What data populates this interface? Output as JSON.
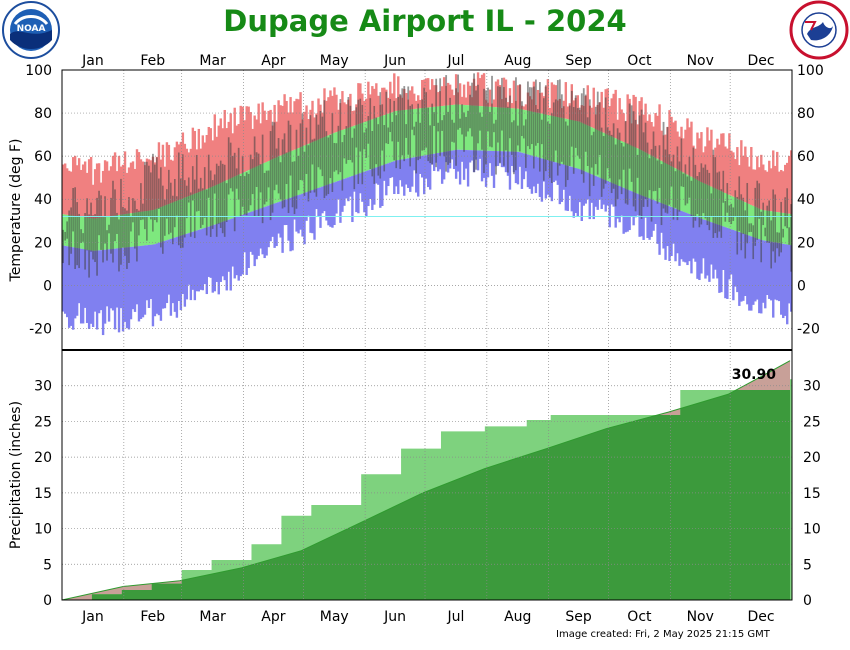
{
  "header": {
    "title": "Dupage Airport IL - 2024",
    "credit": "Image created: Fri, 2 May 2025 21:15 GMT"
  },
  "logos": {
    "left": "noaa-logo",
    "right": "nws-logo"
  },
  "colors": {
    "title": "#168a16",
    "record_band": "#f08080",
    "normal_band": "#7ee87e",
    "low_band": "#8080f0",
    "obs_bar": "#404040",
    "precip_actual": "#3c9a3c",
    "precip_normal_deficit": "#c8a098",
    "precip_normal_line": "#3cb43c"
  },
  "chart_data": [
    {
      "type": "bar",
      "name": "temperature",
      "ylabel": "Temperature (deg F)",
      "ylim": [
        -30,
        100
      ],
      "yticks": [
        -20,
        0,
        20,
        40,
        60,
        80,
        100
      ],
      "months": [
        "Jan",
        "Feb",
        "Mar",
        "Apr",
        "May",
        "Jun",
        "Jul",
        "Aug",
        "Sep",
        "Oct",
        "Nov",
        "Dec"
      ],
      "grid": true,
      "freezing_line": 32,
      "normal_high": [
        31,
        35,
        46,
        59,
        71,
        81,
        84,
        82,
        76,
        63,
        48,
        35
      ],
      "normal_low": [
        16,
        19,
        28,
        38,
        48,
        58,
        63,
        62,
        54,
        42,
        31,
        21
      ],
      "record_high": [
        60,
        66,
        80,
        88,
        93,
        99,
        100,
        97,
        95,
        88,
        76,
        66
      ],
      "record_low": [
        -24,
        -20,
        -8,
        12,
        26,
        38,
        46,
        44,
        30,
        20,
        0,
        -16
      ],
      "obs_high": [
        34,
        50,
        55,
        66,
        76,
        84,
        87,
        86,
        83,
        72,
        55,
        36
      ],
      "obs_low": [
        12,
        24,
        32,
        40,
        51,
        62,
        64,
        61,
        54,
        42,
        32,
        20
      ]
    },
    {
      "type": "area",
      "name": "precipitation",
      "ylabel": "Precipitation (inches)",
      "ylim": [
        0,
        35
      ],
      "yticks": [
        0,
        5,
        10,
        15,
        20,
        25,
        30
      ],
      "grid": true,
      "annotation": "30.90",
      "cumulative_actual": [
        0.0,
        0.8,
        1.4,
        2.3,
        4.2,
        5.6,
        7.8,
        11.8,
        13.3,
        17.6,
        21.2,
        23.6,
        24.3,
        25.2,
        25.9,
        29.4,
        30.9
      ],
      "cumulative_actual_x": [
        0,
        15,
        30,
        45,
        60,
        75,
        95,
        110,
        125,
        150,
        170,
        190,
        212,
        233,
        245,
        310,
        365
      ],
      "cumulative_normal": [
        0.0,
        1.9,
        2.7,
        4.5,
        6.9,
        11.0,
        15.0,
        18.4,
        21.2,
        24.0,
        26.3,
        28.8,
        31.5,
        33.5
      ],
      "cumulative_normal_x": [
        0,
        31,
        59,
        90,
        120,
        151,
        181,
        212,
        243,
        273,
        304,
        334,
        352,
        365
      ]
    }
  ]
}
